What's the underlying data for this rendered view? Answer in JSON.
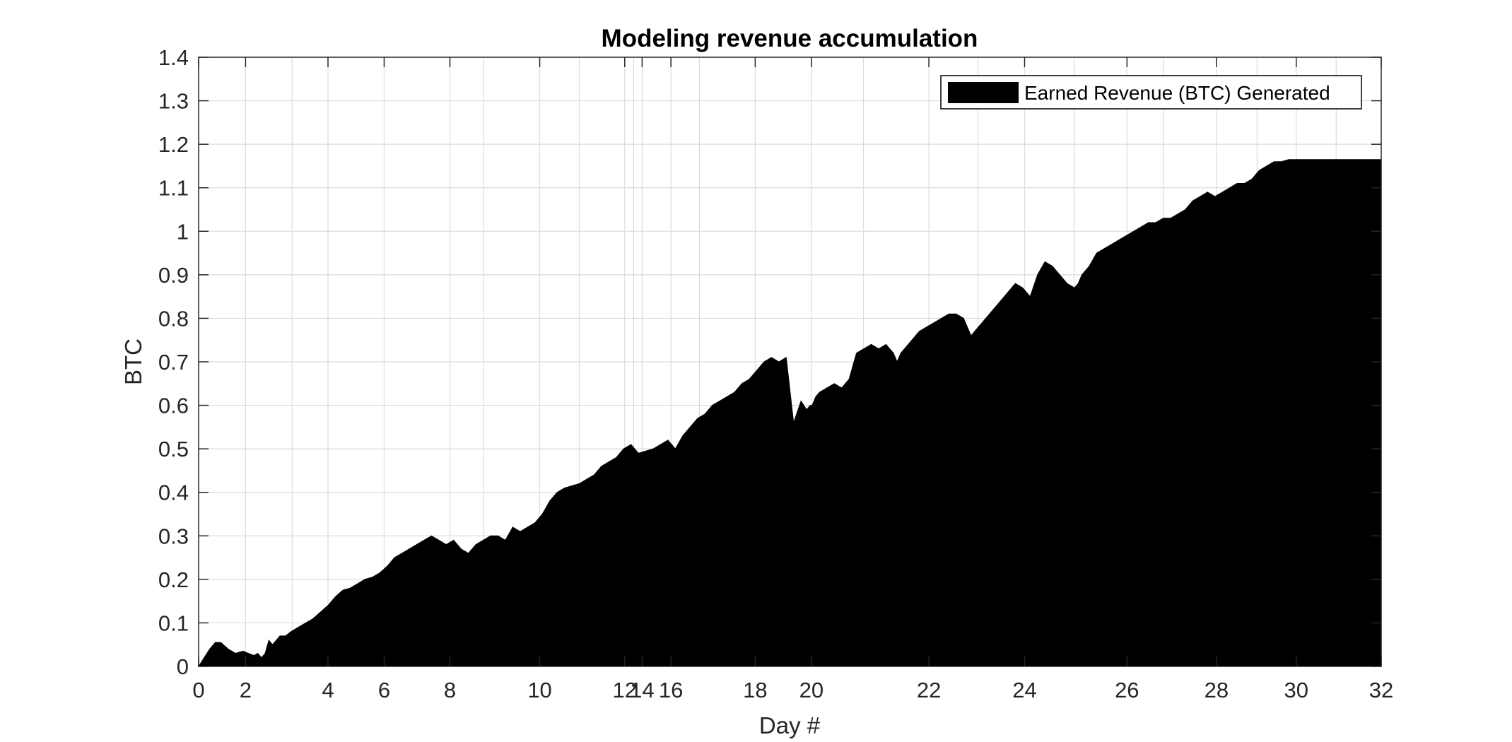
{
  "chart_data": {
    "type": "area",
    "title": "Modeling revenue accumulation",
    "xlabel": "Day #",
    "ylabel": "BTC",
    "xlim": [
      0,
      32
    ],
    "ylim": [
      0,
      1.4
    ],
    "grid": true,
    "legend_position": "top-right",
    "series_color": "#000000",
    "x_ticks": [
      {
        "value": 0,
        "label": "0"
      },
      {
        "value": 1.27,
        "label": "2"
      },
      {
        "value": 3.5,
        "label": "4"
      },
      {
        "value": 5.02,
        "label": "6"
      },
      {
        "value": 6.8,
        "label": "8"
      },
      {
        "value": 9.23,
        "label": "10"
      },
      {
        "value": 11.53,
        "label": "12"
      },
      {
        "value": 12.0,
        "label": "14"
      },
      {
        "value": 12.78,
        "label": "16"
      },
      {
        "value": 15.06,
        "label": "18"
      },
      {
        "value": 16.58,
        "label": "20"
      },
      {
        "value": 19.76,
        "label": "22"
      },
      {
        "value": 22.35,
        "label": "24"
      },
      {
        "value": 25.12,
        "label": "26"
      },
      {
        "value": 27.54,
        "label": "28"
      },
      {
        "value": 29.7,
        "label": "30"
      },
      {
        "value": 32,
        "label": "32"
      }
    ],
    "x_gridlines": [
      0,
      1.27,
      2.53,
      3.5,
      5.02,
      6.8,
      7.71,
      9.23,
      10.3,
      11.53,
      11.77,
      12.0,
      12.78,
      13.55,
      15.06,
      16.58,
      17.99,
      19.76,
      21.09,
      22.35,
      23.69,
      25.12,
      26.1,
      27.54,
      28.64,
      29.7,
      30.78,
      32
    ],
    "y_ticks": [
      0,
      0.1,
      0.2,
      0.3,
      0.4,
      0.5,
      0.6,
      0.7,
      0.8,
      0.9,
      1,
      1.1,
      1.2,
      1.3,
      1.4
    ],
    "y_tick_labels": [
      "0",
      "0.1",
      "0.2",
      "0.3",
      "0.4",
      "0.5",
      "0.6",
      "0.7",
      "0.8",
      "0.9",
      "1",
      "1.1",
      "1.2",
      "1.3",
      "1.4"
    ],
    "series": [
      {
        "name": "Earned Revenue (BTC) Generated",
        "x": [
          0,
          0.15,
          0.3,
          0.45,
          0.6,
          0.8,
          1.0,
          1.2,
          1.35,
          1.5,
          1.6,
          1.7,
          1.8,
          1.9,
          2.0,
          2.1,
          2.2,
          2.35,
          2.5,
          2.7,
          2.9,
          3.1,
          3.3,
          3.5,
          3.7,
          3.9,
          4.1,
          4.3,
          4.5,
          4.7,
          4.9,
          5.1,
          5.3,
          5.5,
          5.7,
          5.9,
          6.1,
          6.3,
          6.5,
          6.7,
          6.9,
          7.1,
          7.3,
          7.5,
          7.7,
          7.9,
          8.1,
          8.3,
          8.5,
          8.7,
          8.9,
          9.1,
          9.3,
          9.5,
          9.7,
          9.9,
          10.1,
          10.3,
          10.5,
          10.7,
          10.9,
          11.1,
          11.3,
          11.5,
          11.7,
          11.9,
          12.1,
          12.3,
          12.5,
          12.7,
          12.9,
          13.1,
          13.3,
          13.5,
          13.7,
          13.9,
          14.1,
          14.3,
          14.5,
          14.7,
          14.9,
          15.1,
          15.3,
          15.5,
          15.7,
          15.9,
          16.1,
          16.3,
          16.45,
          16.55,
          16.6,
          16.7,
          16.8,
          17.0,
          17.2,
          17.4,
          17.6,
          17.8,
          18.0,
          18.2,
          18.4,
          18.6,
          18.8,
          18.9,
          19.0,
          19.1,
          19.3,
          19.5,
          19.7,
          19.9,
          20.1,
          20.3,
          20.5,
          20.7,
          20.9,
          21.1,
          21.3,
          21.5,
          21.7,
          21.9,
          22.1,
          22.3,
          22.5,
          22.7,
          22.9,
          23.1,
          23.3,
          23.5,
          23.7,
          23.8,
          23.9,
          24.1,
          24.3,
          24.5,
          24.7,
          24.9,
          25.1,
          25.3,
          25.5,
          25.7,
          25.9,
          26.1,
          26.3,
          26.5,
          26.7,
          26.9,
          27.1,
          27.3,
          27.5,
          27.7,
          27.9,
          28.1,
          28.3,
          28.5,
          28.7,
          28.9,
          29.1,
          29.3,
          29.5,
          29.7,
          29.9,
          30.1,
          30.3,
          30.5,
          30.7,
          30.9,
          31.1,
          31.3,
          31.5,
          31.7,
          31.9,
          32.0
        ],
        "y": [
          0.0,
          0.02,
          0.04,
          0.055,
          0.055,
          0.04,
          0.03,
          0.035,
          0.03,
          0.025,
          0.03,
          0.02,
          0.03,
          0.06,
          0.05,
          0.06,
          0.07,
          0.07,
          0.08,
          0.09,
          0.1,
          0.11,
          0.125,
          0.14,
          0.16,
          0.175,
          0.18,
          0.19,
          0.2,
          0.205,
          0.215,
          0.23,
          0.25,
          0.26,
          0.27,
          0.28,
          0.29,
          0.3,
          0.29,
          0.28,
          0.29,
          0.27,
          0.26,
          0.28,
          0.29,
          0.3,
          0.3,
          0.29,
          0.32,
          0.31,
          0.32,
          0.33,
          0.35,
          0.38,
          0.4,
          0.41,
          0.415,
          0.42,
          0.43,
          0.44,
          0.46,
          0.47,
          0.48,
          0.5,
          0.51,
          0.49,
          0.495,
          0.5,
          0.51,
          0.52,
          0.5,
          0.53,
          0.55,
          0.57,
          0.58,
          0.6,
          0.61,
          0.62,
          0.63,
          0.65,
          0.66,
          0.68,
          0.7,
          0.71,
          0.7,
          0.71,
          0.56,
          0.61,
          0.59,
          0.6,
          0.6,
          0.62,
          0.63,
          0.64,
          0.65,
          0.64,
          0.66,
          0.72,
          0.73,
          0.74,
          0.73,
          0.74,
          0.72,
          0.7,
          0.72,
          0.73,
          0.75,
          0.77,
          0.78,
          0.79,
          0.8,
          0.81,
          0.81,
          0.8,
          0.76,
          0.78,
          0.8,
          0.82,
          0.84,
          0.86,
          0.88,
          0.87,
          0.85,
          0.9,
          0.93,
          0.92,
          0.9,
          0.88,
          0.87,
          0.88,
          0.9,
          0.92,
          0.95,
          0.96,
          0.97,
          0.98,
          0.99,
          1.0,
          1.01,
          1.02,
          1.02,
          1.03,
          1.03,
          1.04,
          1.05,
          1.07,
          1.08,
          1.09,
          1.08,
          1.09,
          1.1,
          1.11,
          1.11,
          1.12,
          1.14,
          1.15,
          1.16,
          1.16,
          1.165,
          1.165,
          1.165,
          1.165,
          1.165,
          1.165,
          1.165,
          1.165,
          1.165,
          1.165,
          1.165,
          1.165,
          1.165,
          1.165
        ]
      }
    ]
  }
}
